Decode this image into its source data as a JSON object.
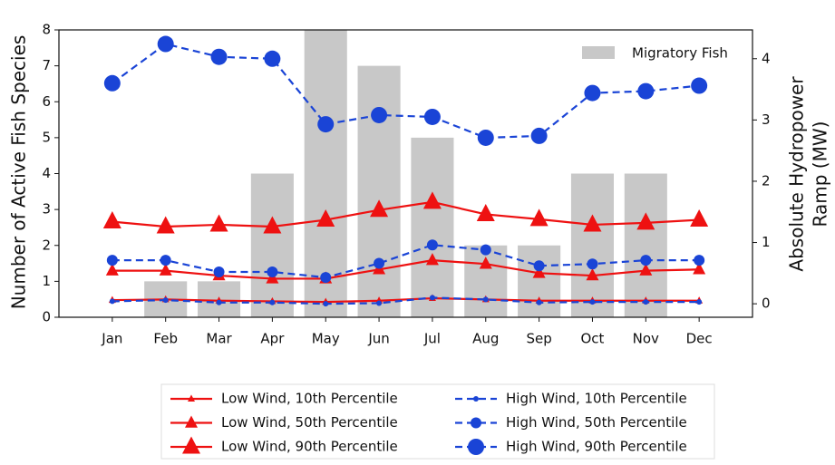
{
  "chart_data": {
    "type": "bar-line",
    "ylabel": "Number of Active Fish Species",
    "y2label": [
      "Absolute Hydropower",
      "Ramp (MW)"
    ],
    "categories": [
      "Jan",
      "Feb",
      "Mar",
      "Apr",
      "May",
      "Jun",
      "Jul",
      "Aug",
      "Sep",
      "Oct",
      "Nov",
      "Dec"
    ],
    "ylim": [
      0,
      8
    ],
    "yticks": [
      0,
      1,
      2,
      3,
      4,
      5,
      6,
      7,
      8
    ],
    "y2lim": [
      -0.22,
      4.47
    ],
    "y2ticks": [
      0,
      1,
      2,
      3,
      4
    ],
    "series": [
      {
        "name": "Migratory Fish",
        "type": "bar",
        "color": "#c8c8c8",
        "values": [
          0,
          1,
          1,
          4,
          8,
          7,
          5,
          2,
          2,
          4,
          4,
          0
        ]
      },
      {
        "name": "Low Wind, 10th Percentile",
        "type": "line",
        "axis": "y2",
        "color": "#ee1111",
        "marker": "triangle",
        "marker_size": 4,
        "linestyle": "solid",
        "values": [
          0.06,
          0.07,
          0.05,
          0.04,
          0.03,
          0.05,
          0.09,
          0.07,
          0.05,
          0.05,
          0.05,
          0.05
        ]
      },
      {
        "name": "Low Wind, 50th Percentile",
        "type": "line",
        "axis": "y2",
        "color": "#ee1111",
        "marker": "triangle",
        "marker_size": 7,
        "linestyle": "solid",
        "values": [
          0.54,
          0.54,
          0.46,
          0.41,
          0.41,
          0.56,
          0.71,
          0.65,
          0.5,
          0.46,
          0.54,
          0.56
        ]
      },
      {
        "name": "Low Wind, 90th Percentile",
        "type": "line",
        "axis": "y2",
        "color": "#ee1111",
        "marker": "triangle",
        "marker_size": 10,
        "linestyle": "solid",
        "values": [
          1.34,
          1.26,
          1.29,
          1.26,
          1.37,
          1.53,
          1.66,
          1.46,
          1.38,
          1.29,
          1.32,
          1.37
        ]
      },
      {
        "name": "High Wind, 10th Percentile",
        "type": "line",
        "axis": "y2",
        "color": "#1a44d6",
        "marker": "circle",
        "marker_size": 3,
        "linestyle": "dashed",
        "values": [
          0.04,
          0.06,
          0.02,
          0.02,
          0.0,
          0.01,
          0.1,
          0.07,
          0.02,
          0.03,
          0.03,
          0.03
        ]
      },
      {
        "name": "High Wind, 50th Percentile",
        "type": "line",
        "axis": "y2",
        "color": "#1a44d6",
        "marker": "circle",
        "marker_size": 6,
        "linestyle": "dashed",
        "values": [
          0.71,
          0.71,
          0.52,
          0.52,
          0.43,
          0.66,
          0.96,
          0.88,
          0.62,
          0.65,
          0.71,
          0.71
        ]
      },
      {
        "name": "High Wind, 90th Percentile",
        "type": "line",
        "axis": "y2",
        "color": "#1a44d6",
        "marker": "circle",
        "marker_size": 9,
        "linestyle": "dashed",
        "values": [
          3.6,
          4.24,
          4.03,
          4.0,
          2.93,
          3.08,
          3.05,
          2.71,
          2.74,
          3.44,
          3.47,
          3.56
        ]
      }
    ]
  }
}
